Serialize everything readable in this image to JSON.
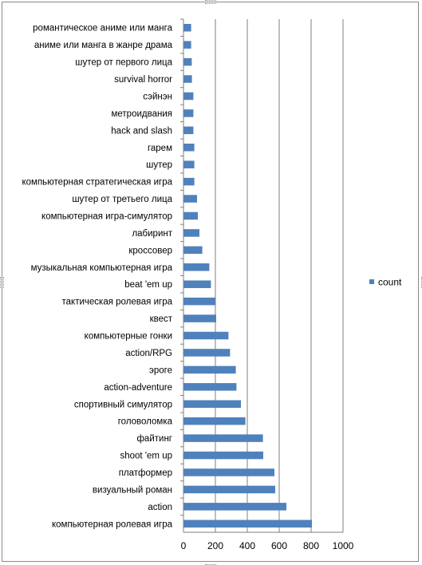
{
  "chart_data": {
    "type": "bar",
    "orientation": "horizontal",
    "categories": [
      "романтическое аниме или манга",
      "аниме или манга в жанре драма",
      "шутер  от первого лица",
      "survival horror",
      "сэйнэн",
      "метроидвания",
      "hack and slash",
      "гарем",
      "шутер",
      "компьютерная  стратегическая игра",
      "шутер  от третьего лица",
      "компьютерная  игра-симулятор",
      "лабиринт",
      "кроссовер",
      "музыкальная компьютерная  игра",
      "beat 'em up",
      "тактическая ролевая игра",
      "квест",
      "компьютерные  гонки",
      "action/RPG",
      "эроге",
      "action-adventure",
      "спортивный симулятор",
      "головоломка",
      "файтинг",
      "shoot 'em up",
      "платформер",
      "визуальный роман",
      "action",
      "компьютерная  ролевая игра"
    ],
    "series": [
      {
        "name": "count",
        "color": "#4f81bd",
        "values": [
          48,
          48,
          52,
          53,
          62,
          62,
          62,
          68,
          68,
          68,
          85,
          90,
          100,
          118,
          162,
          172,
          198,
          205,
          282,
          292,
          328,
          332,
          360,
          388,
          498,
          500,
          570,
          575,
          645,
          805
        ]
      }
    ],
    "xlim": [
      0,
      1000
    ],
    "xticks": [
      "0",
      "200",
      "400",
      "600",
      "800",
      "1000"
    ],
    "grid": "vertical",
    "legend": "right"
  }
}
